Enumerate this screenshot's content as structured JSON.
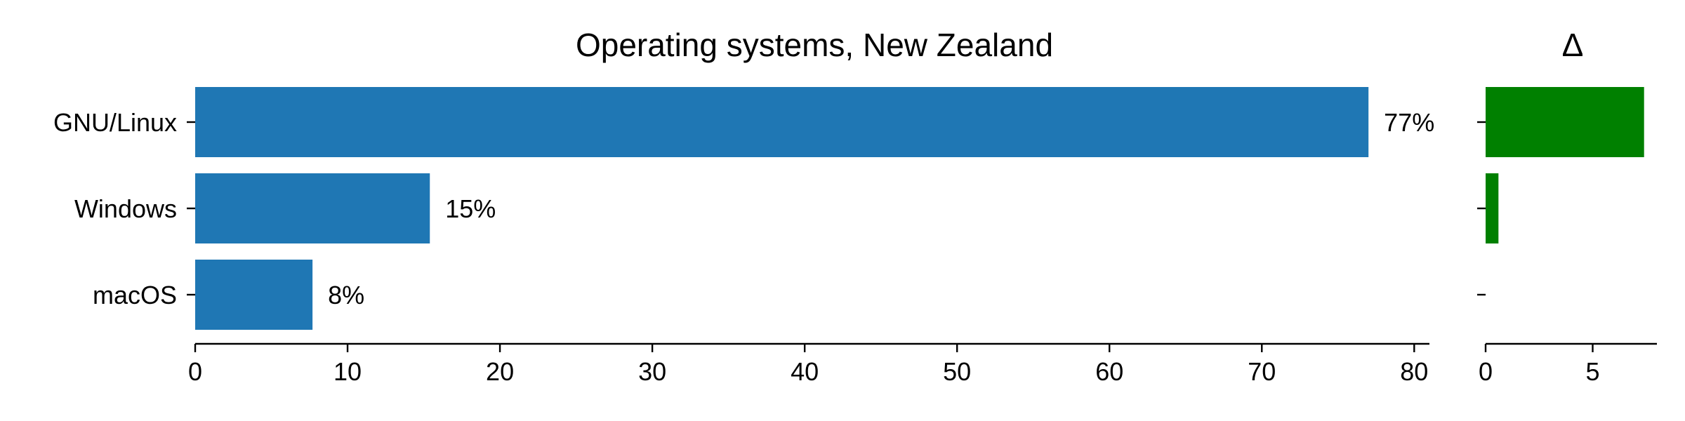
{
  "chart_data": [
    {
      "type": "bar",
      "orientation": "horizontal",
      "title": "Operating systems, New Zealand",
      "xlabel": "",
      "ylabel": "",
      "categories": [
        "GNU/Linux",
        "Windows",
        "macOS"
      ],
      "values": [
        77,
        15.4,
        7.7
      ],
      "data_labels": [
        "77%",
        "15%",
        "8%"
      ],
      "xlim": [
        0,
        81
      ],
      "xticks": [
        0,
        10,
        20,
        30,
        40,
        50,
        60,
        70,
        80
      ],
      "bar_color": "#1f77b4",
      "grid": false
    },
    {
      "type": "bar",
      "orientation": "horizontal",
      "title": "Δ",
      "xlabel": "",
      "ylabel": "",
      "categories": [
        "GNU/Linux",
        "Windows",
        "macOS"
      ],
      "values": [
        7.4,
        0.6,
        0
      ],
      "xlim": [
        0,
        8
      ],
      "xticks": [
        0,
        5
      ],
      "bar_color": "#008000",
      "grid": false
    }
  ]
}
